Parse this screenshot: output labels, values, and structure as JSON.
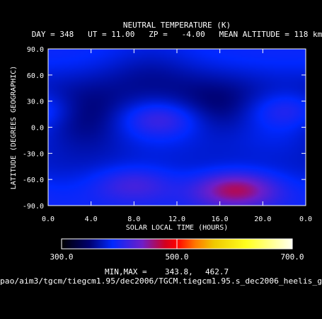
{
  "chart_data": {
    "type": "heatmap",
    "title": "NEUTRAL TEMPERATURE (K)",
    "subtitle": "DAY = 348   UT = 11.00   ZP =   -4.00   MEAN ALTITUDE = 118 km",
    "xlabel": "SOLAR LOCAL TIME (HOURS)",
    "ylabel": "LATITUDE (DEGREES GEOGRAPHIC)",
    "x_ticks": [
      "0.0",
      "4.0",
      "8.0",
      "12.0",
      "16.0",
      "20.0",
      "0.0"
    ],
    "y_ticks": [
      "90.0",
      "60.0",
      "30.0",
      "0.0",
      "-30.0",
      "-60.0",
      "-90.0"
    ],
    "xlim": [
      0,
      24
    ],
    "ylim": [
      -90,
      90
    ],
    "colorbar": {
      "min": 300.0,
      "max": 700.0,
      "tick_labels": [
        "300.0",
        "500.0",
        "700.0"
      ]
    },
    "min_max_label": "MIN,MAX =",
    "min_value": "343.8,",
    "max_value": "462.7",
    "field_features": [
      {
        "kind": "min",
        "slt": 3.5,
        "lat": 8,
        "value": 343.8
      },
      {
        "kind": "min",
        "slt": 15.8,
        "lat": 18,
        "value": 350
      },
      {
        "kind": "min",
        "slt": 9.5,
        "lat": 68,
        "value": 365
      },
      {
        "kind": "max",
        "slt": 17.5,
        "lat": -72,
        "value": 462.7
      },
      {
        "kind": "max",
        "slt": 10.5,
        "lat": 10,
        "value": 420
      },
      {
        "kind": "max",
        "slt": 22.5,
        "lat": 20,
        "value": 415
      },
      {
        "kind": "max",
        "slt": 8.0,
        "lat": -65,
        "value": 420
      }
    ]
  },
  "file_path": "pao/aim3/tgcm/tiegcm1.95/dec2006/TGCM.tiegcm1.95.s_dec2006_heelis_g"
}
